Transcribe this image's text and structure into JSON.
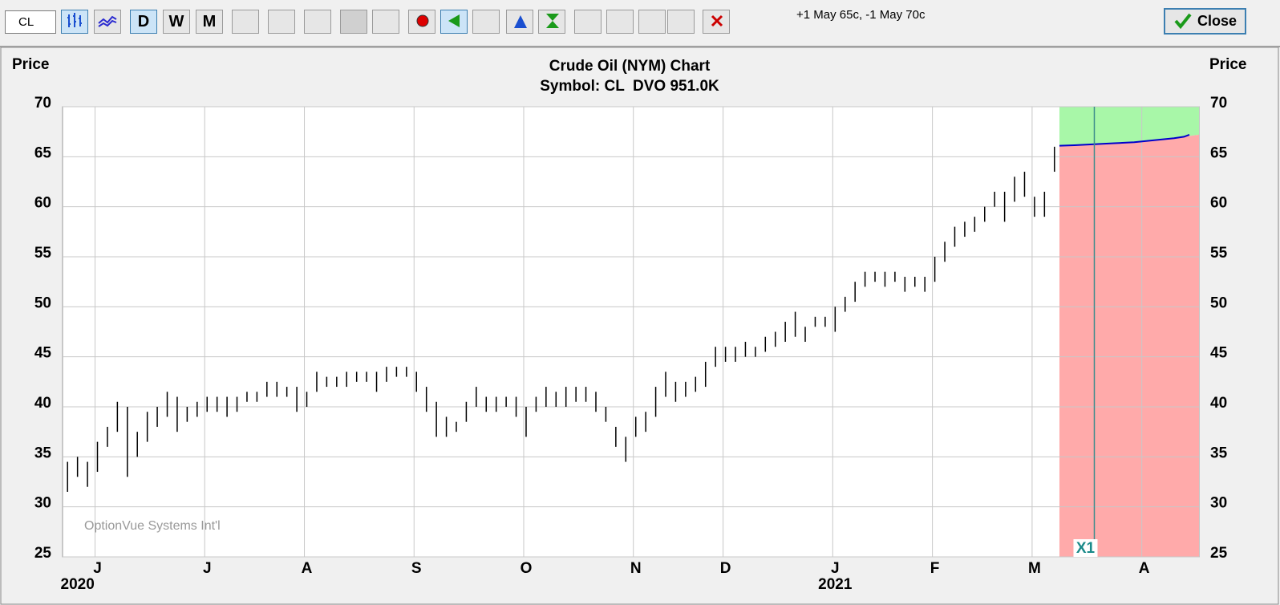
{
  "toolbar": {
    "symbol": "CL",
    "periods": [
      "D",
      "W",
      "M"
    ],
    "position": "+1 May 65c, -1 May 70c",
    "close": "Close"
  },
  "chart_data": {
    "type": "ohlc",
    "title": "Crude Oil (NYM) Chart",
    "subtitle": "Symbol: CL  DVO 951.0K",
    "y_label": "Price",
    "watermark": "OptionVue Systems Int'l",
    "ylim": [
      25,
      70
    ],
    "yticks": [
      25,
      30,
      35,
      40,
      45,
      50,
      55,
      60,
      65,
      70
    ],
    "grid": true,
    "color": "#000000",
    "categories": [
      null,
      null,
      null,
      "J",
      null,
      null,
      null,
      null,
      null,
      null,
      null,
      null,
      null,
      null,
      "J",
      null,
      null,
      null,
      null,
      null,
      null,
      null,
      null,
      null,
      "A",
      null,
      null,
      null,
      null,
      null,
      null,
      null,
      null,
      null,
      null,
      "S",
      null,
      null,
      null,
      null,
      null,
      null,
      null,
      null,
      null,
      null,
      "O",
      null,
      null,
      null,
      null,
      null,
      null,
      null,
      null,
      null,
      null,
      "N",
      null,
      null,
      null,
      null,
      null,
      null,
      null,
      null,
      "D",
      null,
      null,
      null,
      null,
      null,
      null,
      null,
      null,
      null,
      null,
      "J",
      null,
      null,
      null,
      null,
      null,
      null,
      null,
      null,
      null,
      "F",
      null,
      null,
      null,
      null,
      null,
      null,
      null,
      null,
      null,
      "M",
      null,
      null,
      null,
      null,
      null,
      null,
      null,
      null,
      null,
      null,
      "A",
      null,
      null,
      null,
      null,
      null
    ],
    "years": [
      null,
      "2020",
      null,
      null,
      null,
      null,
      null,
      null,
      null,
      null,
      null,
      null,
      null,
      null,
      null,
      null,
      null,
      null,
      null,
      null,
      null,
      null,
      null,
      null,
      null,
      null,
      null,
      null,
      null,
      null,
      null,
      null,
      null,
      null,
      null,
      null,
      null,
      null,
      null,
      null,
      null,
      null,
      null,
      null,
      null,
      null,
      null,
      null,
      null,
      null,
      null,
      null,
      null,
      null,
      null,
      null,
      null,
      null,
      null,
      null,
      null,
      null,
      null,
      null,
      null,
      null,
      null,
      null,
      null,
      null,
      null,
      null,
      null,
      null,
      null,
      null,
      null,
      "2021",
      null,
      null,
      null,
      null,
      null,
      null,
      null,
      null,
      null,
      null,
      null,
      null,
      null,
      null,
      null,
      null,
      null,
      null,
      null,
      null,
      null,
      null,
      null,
      null,
      null,
      null,
      null,
      null,
      null,
      null,
      null,
      null,
      null,
      null,
      null,
      null
    ],
    "markers": [
      null,
      null,
      null,
      null,
      null,
      null,
      null,
      null,
      null,
      null,
      null,
      null,
      null,
      null,
      null,
      null,
      null,
      null,
      null,
      null,
      null,
      null,
      null,
      null,
      null,
      null,
      null,
      null,
      null,
      null,
      null,
      null,
      null,
      null,
      null,
      null,
      null,
      null,
      null,
      null,
      null,
      null,
      null,
      null,
      null,
      null,
      null,
      null,
      null,
      null,
      null,
      null,
      null,
      null,
      null,
      null,
      null,
      null,
      null,
      null,
      null,
      null,
      null,
      null,
      null,
      null,
      null,
      null,
      null,
      null,
      null,
      null,
      null,
      null,
      null,
      null,
      null,
      null,
      null,
      null,
      null,
      null,
      null,
      null,
      null,
      null,
      null,
      null,
      null,
      null,
      null,
      null,
      null,
      null,
      null,
      null,
      null,
      null,
      null,
      null,
      null,
      null,
      null,
      "X1",
      null,
      null,
      null,
      null,
      null,
      null,
      null,
      null,
      null,
      null
    ],
    "high": [
      34.5,
      35,
      34.5,
      36.5,
      38,
      40.5,
      40,
      37.5,
      39.5,
      40,
      41.5,
      41,
      40,
      40.5,
      41,
      41,
      41,
      41,
      41.5,
      41.5,
      42.5,
      42.5,
      42,
      42,
      41.5,
      43.5,
      43,
      43,
      43.5,
      43.5,
      43.5,
      43.5,
      44,
      44,
      44,
      43.5,
      42,
      40.5,
      39,
      38.5,
      40.5,
      42,
      41,
      41,
      41,
      41,
      40,
      41,
      42,
      41.5,
      42,
      42,
      42,
      41.5,
      40,
      38,
      37,
      39,
      39.5,
      42,
      43.5,
      42.5,
      42.5,
      43,
      44.5,
      46,
      46,
      46,
      46.5,
      46,
      47,
      47.5,
      48.5,
      49.5,
      48,
      49,
      49,
      50,
      51,
      52.5,
      53.5,
      53.5,
      53.5,
      53.5,
      53,
      53,
      53,
      55,
      56.5,
      58,
      58.5,
      59,
      60,
      61.5,
      61.5,
      63,
      63.5,
      61,
      61.5,
      66,
      null,
      null,
      null,
      null,
      null,
      null,
      null,
      null,
      null,
      null,
      null,
      null,
      null,
      null
    ],
    "low": [
      31.5,
      33,
      32,
      33.5,
      36,
      37.5,
      33,
      35,
      36.5,
      38,
      39,
      37.5,
      38.5,
      39,
      39.5,
      39.5,
      39,
      39.5,
      40.5,
      40.5,
      41,
      41,
      41,
      39.5,
      40,
      41.5,
      42,
      42,
      42,
      42.5,
      42.5,
      41.5,
      42.5,
      43,
      43,
      41.5,
      39.5,
      37,
      37,
      37.5,
      38.5,
      40,
      39.5,
      39.5,
      40,
      39,
      37,
      39.5,
      40,
      40,
      40,
      40.5,
      40.5,
      39.5,
      38.5,
      36,
      34.5,
      37,
      37.5,
      39,
      41,
      40.5,
      41,
      41.5,
      42,
      44,
      44.5,
      44.5,
      45,
      45,
      45.5,
      46,
      46.5,
      47,
      46.5,
      48,
      48,
      47.5,
      49.5,
      50.5,
      52,
      52.5,
      52,
      52.5,
      51.5,
      52,
      51.5,
      52.5,
      54.5,
      56,
      57,
      57.5,
      58.5,
      60,
      58.5,
      60.5,
      61,
      59,
      59,
      63.5,
      null,
      null,
      null,
      null,
      null,
      null,
      null,
      null,
      null,
      null,
      null,
      null,
      null,
      null
    ],
    "projection": {
      "color": "#0000cc",
      "above_color": "#a8f7a8",
      "below_color": "#ffaaaa",
      "values": [
        null,
        null,
        null,
        null,
        null,
        null,
        null,
        null,
        null,
        null,
        null,
        null,
        null,
        null,
        null,
        null,
        null,
        null,
        null,
        null,
        null,
        null,
        null,
        null,
        null,
        null,
        null,
        null,
        null,
        null,
        null,
        null,
        null,
        null,
        null,
        null,
        null,
        null,
        null,
        null,
        null,
        null,
        null,
        null,
        null,
        null,
        null,
        null,
        null,
        null,
        null,
        null,
        null,
        null,
        null,
        null,
        null,
        null,
        null,
        null,
        null,
        null,
        null,
        null,
        null,
        null,
        null,
        null,
        null,
        null,
        null,
        null,
        null,
        null,
        null,
        null,
        null,
        null,
        null,
        null,
        null,
        null,
        null,
        null,
        null,
        null,
        null,
        null,
        null,
        null,
        null,
        null,
        null,
        null,
        null,
        null,
        null,
        null,
        null,
        null,
        66.1,
        66.15,
        66.2,
        66.25,
        66.3,
        66.35,
        66.4,
        66.45,
        66.55,
        66.65,
        66.75,
        66.85,
        67.0,
        67.2
      ]
    }
  }
}
